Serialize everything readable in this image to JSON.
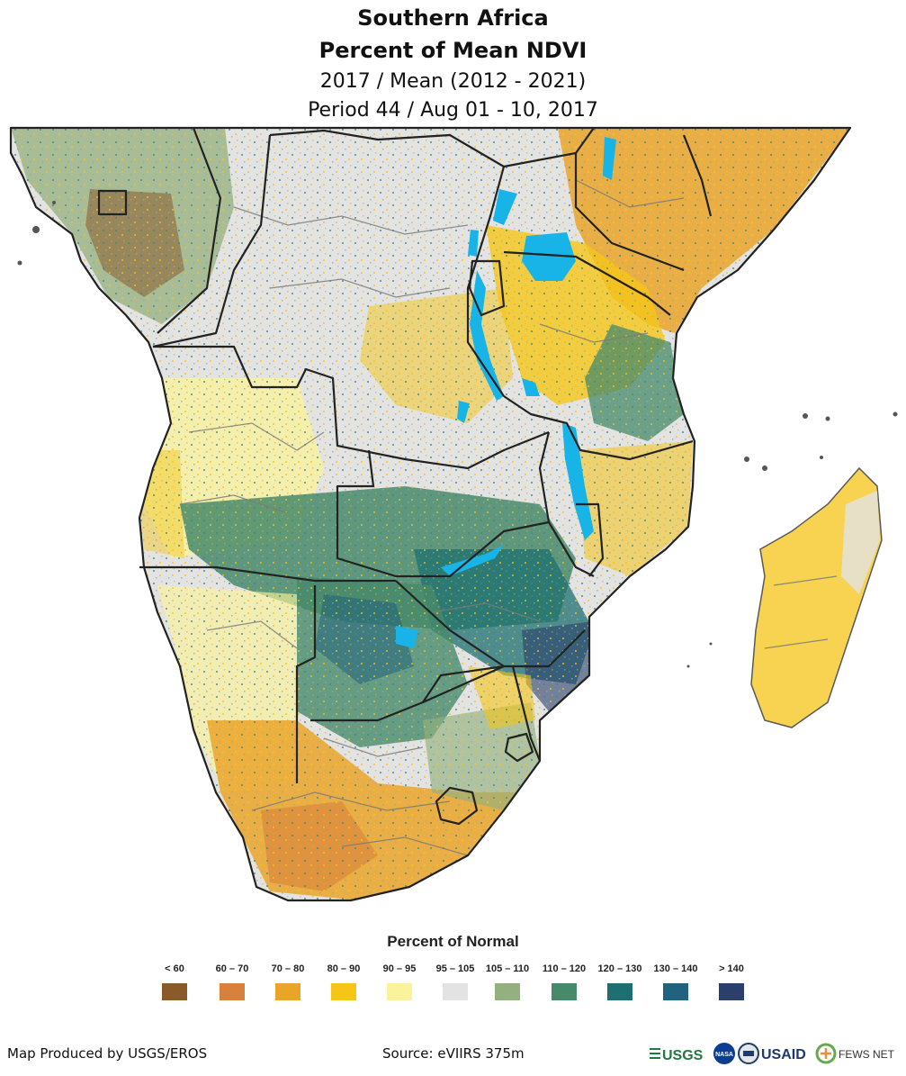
{
  "title": {
    "line1": "Southern Africa",
    "line2": "Percent of Mean NDVI",
    "line3": "2017 / Mean (2012 - 2021)",
    "line4": "Period 44 / Aug 01 - 10, 2017"
  },
  "legend": {
    "title": "Percent of Normal",
    "classes": [
      {
        "label": "< 60",
        "color": "#8b5a2b"
      },
      {
        "label": "60 – 70",
        "color": "#d9803a"
      },
      {
        "label": "70 – 80",
        "color": "#eaa42a"
      },
      {
        "label": "80 – 90",
        "color": "#f5c518"
      },
      {
        "label": "90 – 95",
        "color": "#fbf39b"
      },
      {
        "label": "95 – 105",
        "color": "#e3e3e3"
      },
      {
        "label": "105 – 110",
        "color": "#94b07e"
      },
      {
        "label": "110 – 120",
        "color": "#468a6b"
      },
      {
        "label": "120 – 130",
        "color": "#1e6f71"
      },
      {
        "label": "130 – 140",
        "color": "#20637e"
      },
      {
        "label": "> 140",
        "color": "#2a3f6b"
      }
    ]
  },
  "colors": {
    "water": "#18b4e8",
    "border": "#222222",
    "admin_border": "#7a7a7a"
  },
  "footer": {
    "credit": "Map Produced by USGS/EROS",
    "source": "Source: eVIIRS 375m",
    "logos": {
      "usgs": "USGS",
      "nasa": "NASA",
      "usaid": "USAID",
      "fews": "FEWS NET"
    }
  }
}
